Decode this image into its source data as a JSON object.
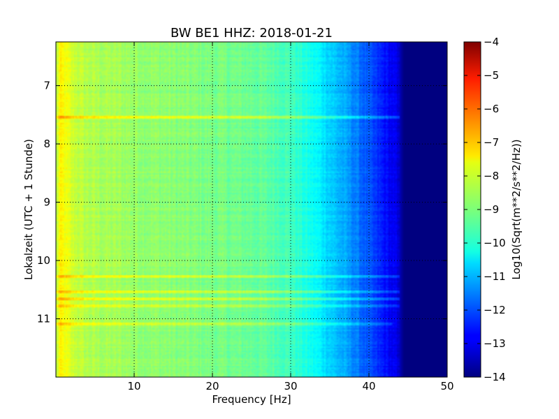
{
  "chart_data": {
    "type": "heatmap",
    "title": "BW BE1 HHZ: 2018-01-21",
    "xlabel": "Frequency [Hz]",
    "ylabel": "Lokalzeit (UTC + 1 Stunde)",
    "colorbar_label": "Log10(Sqrt(m**2/s**2/Hz))",
    "colormap": "jet",
    "xlim": [
      0,
      50
    ],
    "ylim": [
      6.25,
      12.0
    ],
    "y_inverted": true,
    "grid": true,
    "x_ticks": [
      10,
      20,
      30,
      40,
      50
    ],
    "x_tick_labels": [
      "10",
      "20",
      "30",
      "40",
      "50"
    ],
    "y_ticks": [
      7,
      8,
      9,
      10,
      11
    ],
    "y_tick_labels": [
      "7",
      "8",
      "9",
      "10",
      "11"
    ],
    "colorbar_range": [
      -14,
      -4
    ],
    "colorbar_ticks": [
      -4,
      -5,
      -6,
      -7,
      -8,
      -9,
      -10,
      -11,
      -12,
      -13,
      -14
    ],
    "colorbar_tick_labels": [
      "−4",
      "−5",
      "−6",
      "−7",
      "−8",
      "−9",
      "−10",
      "−11",
      "−12",
      "−13",
      "−14"
    ],
    "spectral_profile": {
      "frequency_hz": [
        0,
        0.5,
        1,
        2,
        4,
        6,
        8,
        10,
        12,
        15,
        20,
        25,
        28,
        30,
        32,
        34,
        36,
        38,
        40,
        42,
        43.5,
        44.5,
        50
      ],
      "log10_amplitude": [
        -8.6,
        -7.7,
        -7.8,
        -8.2,
        -8.5,
        -8.6,
        -8.65,
        -8.75,
        -8.8,
        -8.9,
        -9.05,
        -9.2,
        -9.4,
        -9.6,
        -10.0,
        -10.4,
        -10.9,
        -11.4,
        -12.0,
        -12.6,
        -13.0,
        -14.0,
        -14.0
      ]
    },
    "bright_bands": [
      {
        "time": 7.55,
        "boost": 1.0,
        "max_freq_hz": 46
      },
      {
        "time": 10.28,
        "boost": 0.75,
        "max_freq_hz": 44
      },
      {
        "time": 10.53,
        "boost": 0.7,
        "max_freq_hz": 45
      },
      {
        "time": 10.65,
        "boost": 0.8,
        "max_freq_hz": 45
      },
      {
        "time": 10.78,
        "boost": 0.55,
        "max_freq_hz": 44
      },
      {
        "time": 11.08,
        "boost": 0.6,
        "max_freq_hz": 43
      }
    ]
  }
}
